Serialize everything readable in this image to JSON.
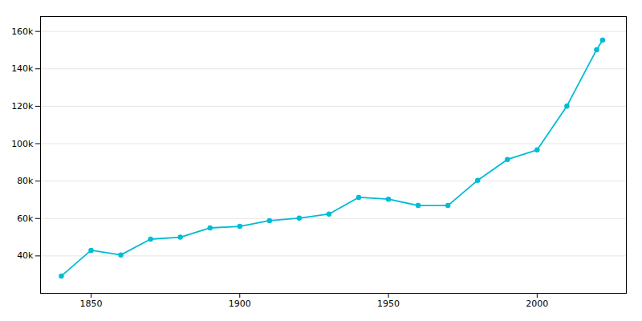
{
  "chart_data": {
    "type": "line",
    "x": [
      1840,
      1850,
      1860,
      1870,
      1880,
      1890,
      1900,
      1910,
      1920,
      1930,
      1940,
      1950,
      1960,
      1970,
      1980,
      1990,
      2000,
      2010,
      2020,
      2022
    ],
    "values": [
      29261,
      42985,
      40522,
      48956,
      49984,
      54955,
      55807,
      58833,
      60176,
      62396,
      71275,
      70310,
      66945,
      66945,
      80414,
      91578,
      96650,
      120083,
      150227,
      155369
    ],
    "color": "#00BCD4",
    "marker": "circle",
    "xlim": [
      1833,
      2030
    ],
    "xticks": [
      1850,
      1900,
      1950,
      2000
    ],
    "ylim": [
      20000,
      168000
    ],
    "yticks": [
      {
        "value": 40000,
        "label": "40k"
      },
      {
        "value": 60000,
        "label": "60k"
      },
      {
        "value": 80000,
        "label": "80k"
      },
      {
        "value": 100000,
        "label": "100k"
      },
      {
        "value": 120000,
        "label": "120k"
      },
      {
        "value": 140000,
        "label": "140k"
      },
      {
        "value": 160000,
        "label": "160k"
      }
    ],
    "grid": "y"
  }
}
